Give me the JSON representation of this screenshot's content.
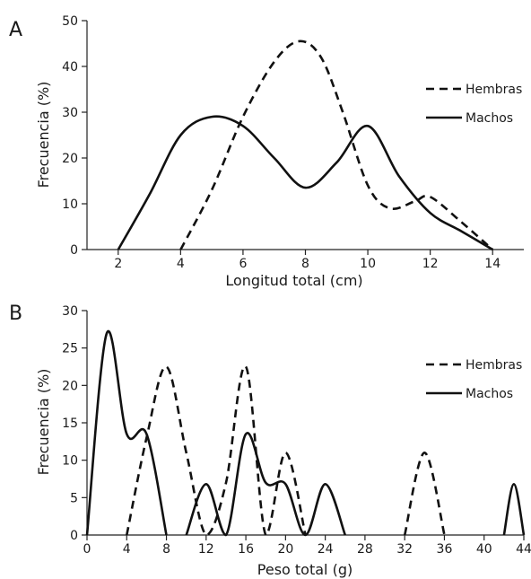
{
  "chart_data": [
    {
      "panel_label": "A",
      "type": "line",
      "xlabel": "Longitud total (cm)",
      "ylabel": "Frecuencia (%)",
      "xlim": [
        1,
        15
      ],
      "ylim": [
        0,
        50
      ],
      "xticks": [
        2,
        4,
        6,
        8,
        10,
        12,
        14
      ],
      "yticks": [
        0,
        10,
        20,
        30,
        40,
        50
      ],
      "grid": false,
      "legend_position": "right",
      "series": [
        {
          "name": "Hembras",
          "style": "dashed",
          "color": "#111111",
          "points": [
            [
              4,
              0
            ],
            [
              5,
              13
            ],
            [
              6,
              29
            ],
            [
              7,
              41
            ],
            [
              7.8,
              45.5
            ],
            [
              8.5,
              42
            ],
            [
              9.2,
              30
            ],
            [
              10,
              14
            ],
            [
              10.7,
              9
            ],
            [
              11.5,
              10.5
            ],
            [
              12,
              11.5
            ],
            [
              13,
              6
            ],
            [
              14,
              0
            ]
          ]
        },
        {
          "name": "Machos",
          "style": "solid",
          "color": "#111111",
          "points": [
            [
              2,
              0
            ],
            [
              3,
              12
            ],
            [
              4,
              25
            ],
            [
              5,
              29
            ],
            [
              6,
              27
            ],
            [
              7,
              20
            ],
            [
              8,
              13.5
            ],
            [
              9,
              19
            ],
            [
              10,
              27
            ],
            [
              11,
              16
            ],
            [
              12,
              8
            ],
            [
              13,
              4
            ],
            [
              14,
              0
            ]
          ]
        }
      ]
    },
    {
      "panel_label": "B",
      "type": "line",
      "xlabel": "Peso total (g)",
      "ylabel": "Frecuencia (%)",
      "xlim": [
        0,
        44
      ],
      "ylim": [
        0,
        30
      ],
      "xticks": [
        0,
        4,
        8,
        12,
        16,
        20,
        24,
        28,
        32,
        36,
        40,
        44
      ],
      "yticks": [
        0,
        5,
        10,
        15,
        20,
        25,
        30
      ],
      "grid": false,
      "legend_position": "right",
      "series": [
        {
          "name": "Hembras",
          "style": "dashed",
          "color": "#111111",
          "points": [
            [
              4,
              0
            ],
            [
              6,
              13
            ],
            [
              8,
              22.5
            ],
            [
              10,
              11
            ],
            [
              12,
              0
            ],
            [
              14,
              7
            ],
            [
              16,
              22.5
            ],
            [
              18,
              0
            ],
            [
              20,
              11
            ],
            [
              22,
              0
            ],
            [
              32,
              0
            ],
            [
              34,
              11
            ],
            [
              36,
              0
            ]
          ]
        },
        {
          "name": "Machos",
          "style": "solid",
          "color": "#111111",
          "points": [
            [
              0,
              0
            ],
            [
              2,
              27
            ],
            [
              4,
              13.5
            ],
            [
              6,
              13.5
            ],
            [
              8,
              0
            ],
            [
              10,
              0
            ],
            [
              12,
              6.8
            ],
            [
              14,
              0
            ],
            [
              16,
              13.5
            ],
            [
              18,
              7
            ],
            [
              20,
              6.8
            ],
            [
              22,
              0
            ],
            [
              24,
              6.8
            ],
            [
              26,
              0
            ],
            [
              42,
              0
            ],
            [
              43,
              6.8
            ],
            [
              44,
              0
            ]
          ]
        }
      ]
    }
  ]
}
